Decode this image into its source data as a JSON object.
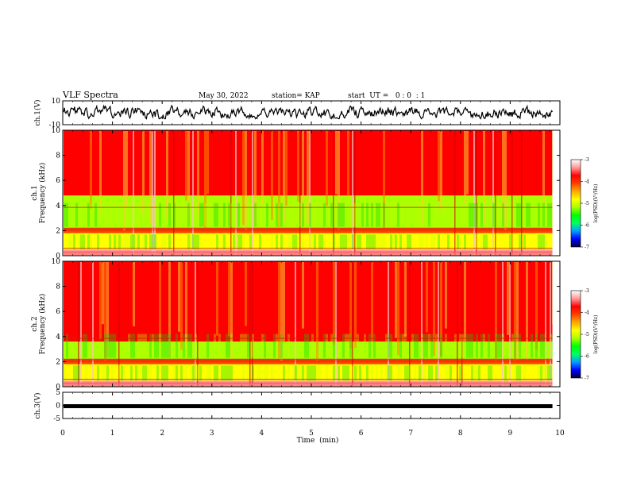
{
  "header": {
    "title": "VLF Spectra",
    "date": "May 30, 2022",
    "station": "station= KAP",
    "start": "start  UT =   0 : 0  : 1"
  },
  "colorbar": {
    "ticks": [
      "-3",
      "-4",
      "-5",
      "-6",
      "-7"
    ],
    "label": "log(PSD)(V²/Hz)",
    "stops": [
      "#000033",
      "#0000ff",
      "#00a0ff",
      "#00ff66",
      "#00ff00",
      "#aaff00",
      "#ffff00",
      "#ffaa00",
      "#ff4000",
      "#ff0000",
      "#ff9999",
      "#ffffff"
    ]
  },
  "chart_data": [
    {
      "type": "line",
      "panel": "ch1-waveform",
      "ylabel": "ch.1(V)",
      "ylim": [
        -10,
        10
      ],
      "y_ticks": [
        "10",
        "-10"
      ],
      "x_range_min": [
        0,
        9.85
      ],
      "note_values": "noisy waveform oscillating roughly between -4 and 5 V"
    },
    {
      "type": "heatmap",
      "panel": "ch1-spectrogram",
      "ylabel": "ch.1\nFrequency (kHz)",
      "ylabel_lines": [
        "ch.1",
        "Frequency (kHz)"
      ],
      "ylim_khz": [
        0,
        10
      ],
      "y_ticks": [
        "0",
        "2",
        "4",
        "6",
        "8",
        "10"
      ],
      "bands": [
        {
          "from_khz": 0,
          "to_khz": 0.5,
          "level": -3.5
        },
        {
          "from_khz": 0.5,
          "to_khz": 1.8,
          "level": -5.0
        },
        {
          "from_khz": 1.8,
          "to_khz": 2.2,
          "level": -4.0
        },
        {
          "from_khz": 2.2,
          "to_khz": 4.8,
          "level": -5.1
        },
        {
          "from_khz": 4.8,
          "to_khz": 10,
          "level": -3.8
        }
      ]
    },
    {
      "type": "heatmap",
      "panel": "ch2-spectrogram",
      "ylabel_lines": [
        "ch.2",
        "Frequency (kHz)"
      ],
      "ylim_khz": [
        0,
        10
      ],
      "y_ticks": [
        "0",
        "2",
        "4",
        "6",
        "8",
        "10"
      ],
      "bands": [
        {
          "from_khz": 0,
          "to_khz": 0.5,
          "level": -3.5
        },
        {
          "from_khz": 0.5,
          "to_khz": 1.8,
          "level": -5.0
        },
        {
          "from_khz": 1.8,
          "to_khz": 2.2,
          "level": -4.0
        },
        {
          "from_khz": 2.2,
          "to_khz": 3.6,
          "level": -5.1
        },
        {
          "from_khz": 3.6,
          "to_khz": 10,
          "level": -3.6
        }
      ]
    },
    {
      "type": "line",
      "panel": "ch3-waveform",
      "ylabel": "ch.3(V)",
      "ylim": [
        -5,
        5
      ],
      "y_ticks": [
        "5",
        "0",
        "-5"
      ],
      "constant_value": -0.3
    }
  ],
  "xaxis": {
    "label": "Time  (min)",
    "ticks": [
      "0",
      "1",
      "2",
      "3",
      "4",
      "5",
      "6",
      "7",
      "8",
      "9",
      "10"
    ],
    "xlim": [
      0,
      10
    ],
    "data_end_min": 9.85
  }
}
